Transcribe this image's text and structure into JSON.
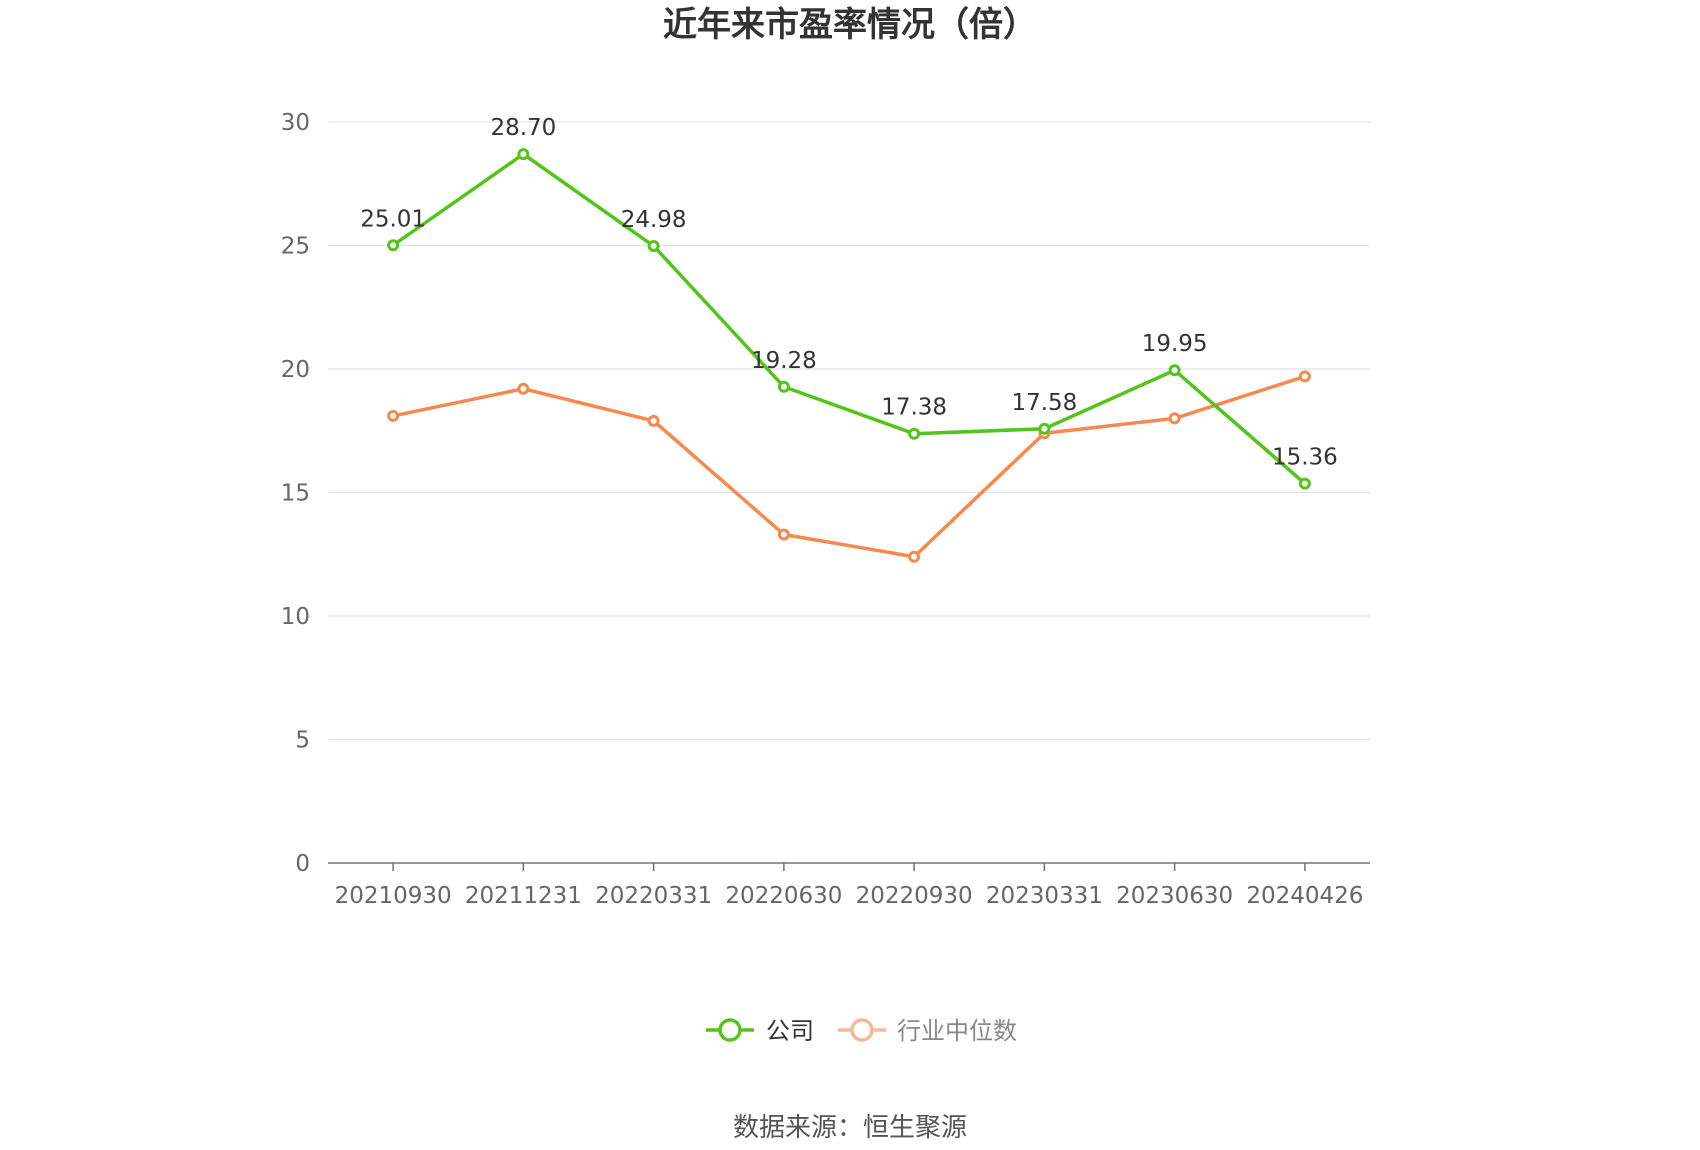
{
  "chart_data": {
    "type": "line",
    "title": "近年来市盈率情况（倍）",
    "categories": [
      "20210930",
      "20211231",
      "20220331",
      "20220630",
      "20220930",
      "20230331",
      "20230630",
      "20240426"
    ],
    "series": [
      {
        "name": "公司",
        "color": "#52c41a",
        "values": [
          25.01,
          28.7,
          24.98,
          19.28,
          17.38,
          17.58,
          19.95,
          15.36
        ],
        "labels": [
          "25.01",
          "28.70",
          "24.98",
          "19.28",
          "17.38",
          "17.58",
          "19.95",
          "15.36"
        ]
      },
      {
        "name": "行业中位数",
        "color": "#f5894f",
        "values": [
          18.1,
          19.2,
          17.9,
          13.3,
          12.4,
          17.4,
          18.0,
          19.7
        ]
      }
    ],
    "ylim": [
      0,
      30
    ],
    "yticks": [
      "0",
      "5",
      "10",
      "15",
      "20",
      "25",
      "30"
    ],
    "grid": true,
    "legend_position": "bottom-center"
  },
  "source_text": "数据来源：恒生聚源"
}
